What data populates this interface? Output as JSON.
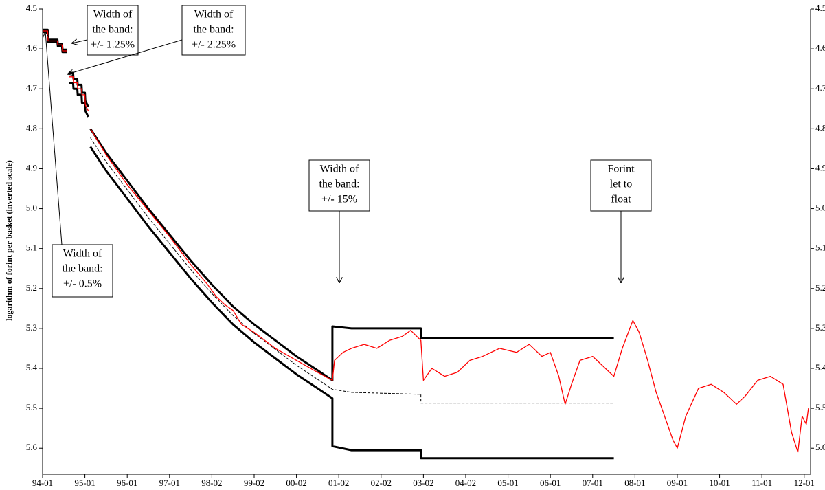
{
  "chart_data": {
    "type": "line",
    "y_label": "logarithm of forint per basket (inverted scale)",
    "y_inverted": true,
    "xlim": [
      0,
      18.15
    ],
    "xticks": [
      {
        "value": 0,
        "label": "94-01"
      },
      {
        "value": 1,
        "label": "95-01"
      },
      {
        "value": 2,
        "label": "96-01"
      },
      {
        "value": 3,
        "label": "97-01"
      },
      {
        "value": 4,
        "label": "98-02"
      },
      {
        "value": 5,
        "label": "99-02"
      },
      {
        "value": 6,
        "label": "00-02"
      },
      {
        "value": 7,
        "label": "01-02"
      },
      {
        "value": 8,
        "label": "02-02"
      },
      {
        "value": 9,
        "label": "03-02"
      },
      {
        "value": 10,
        "label": "04-02"
      },
      {
        "value": 11,
        "label": "05-01"
      },
      {
        "value": 12,
        "label": "06-01"
      },
      {
        "value": 13,
        "label": "07-01"
      },
      {
        "value": 14,
        "label": "08-01"
      },
      {
        "value": 15,
        "label": "09-01"
      },
      {
        "value": 16,
        "label": "10-01"
      },
      {
        "value": 17,
        "label": "11-01"
      },
      {
        "value": 18,
        "label": "12-01"
      }
    ],
    "ylim": [
      4.5,
      5.665
    ],
    "yticks": [
      {
        "value": 4.5,
        "label": "4.5"
      },
      {
        "value": 4.6,
        "label": "4.6"
      },
      {
        "value": 4.7,
        "label": "4.7"
      },
      {
        "value": 4.8,
        "label": "4.8"
      },
      {
        "value": 4.9,
        "label": "4.9"
      },
      {
        "value": 5.0,
        "label": "5.0"
      },
      {
        "value": 5.1,
        "label": "5.1"
      },
      {
        "value": 5.2,
        "label": "5.2"
      },
      {
        "value": 5.3,
        "label": "5.3"
      },
      {
        "value": 5.4,
        "label": "5.4"
      },
      {
        "value": 5.5,
        "label": "5.5"
      },
      {
        "value": 5.6,
        "label": "5.6"
      }
    ],
    "y2lim": [
      4.5,
      5.665
    ],
    "y2ticks": [
      {
        "value": 4.5,
        "label": "4.5"
      },
      {
        "value": 4.6,
        "label": "4.6"
      },
      {
        "value": 4.7,
        "label": "4.7"
      },
      {
        "value": 4.8,
        "label": "4.8"
      },
      {
        "value": 4.9,
        "label": "4.9"
      },
      {
        "value": 5.0,
        "label": "5.0"
      },
      {
        "value": 5.1,
        "label": "5.1"
      },
      {
        "value": 5.2,
        "label": "5.2"
      },
      {
        "value": 5.3,
        "label": "5.3"
      },
      {
        "value": 5.4,
        "label": "5.4"
      },
      {
        "value": 5.5,
        "label": "5.5"
      },
      {
        "value": 5.6,
        "label": "5.6"
      }
    ],
    "series": [
      {
        "color": "#000000",
        "bold": true,
        "x": [
          0,
          0.12,
          0.13,
          0.35,
          0.36,
          0.46,
          0.47,
          0.58,
          0.6,
          0.62,
          0.72,
          0.73,
          0.82,
          0.83,
          0.92,
          0.93,
          1.0,
          1.01,
          1.08,
          1.1,
          1.13,
          1.5,
          2,
          2.5,
          3,
          3.5,
          4,
          4.5,
          5,
          5.5,
          6,
          6.5,
          6.85,
          6.85,
          7.3,
          8.94,
          8.94,
          13.5
        ],
        "values": [
          4.552,
          4.552,
          4.577,
          4.577,
          4.587,
          4.587,
          4.602,
          4.602,
          null,
          4.66,
          4.66,
          4.675,
          4.675,
          4.69,
          4.69,
          4.71,
          4.71,
          4.73,
          4.745,
          null,
          4.8,
          4.86,
          4.93,
          5.0,
          5.065,
          5.13,
          5.19,
          5.245,
          5.29,
          5.33,
          5.37,
          5.405,
          5.43,
          5.295,
          5.3,
          5.3,
          5.325,
          5.325
        ]
      },
      {
        "color": "#000000",
        "bold": true,
        "x": [
          0,
          0.12,
          0.13,
          0.35,
          0.36,
          0.46,
          0.47,
          0.58,
          0.6,
          0.62,
          0.72,
          0.73,
          0.82,
          0.83,
          0.92,
          0.93,
          1.0,
          1.01,
          1.08,
          1.1,
          1.13,
          1.5,
          2,
          2.5,
          3,
          3.5,
          4,
          4.5,
          5,
          5.5,
          6,
          6.5,
          6.85,
          6.85,
          7.3,
          8.94,
          8.94,
          13.5
        ],
        "values": [
          4.558,
          4.558,
          4.583,
          4.583,
          4.593,
          4.593,
          4.608,
          4.608,
          null,
          4.685,
          4.685,
          4.7,
          4.7,
          4.715,
          4.715,
          4.735,
          4.735,
          4.755,
          4.77,
          null,
          4.845,
          4.905,
          4.975,
          5.045,
          5.11,
          5.175,
          5.235,
          5.29,
          5.335,
          5.375,
          5.415,
          5.45,
          5.475,
          5.595,
          5.605,
          5.605,
          5.625,
          5.625
        ]
      },
      {
        "color": "#000000",
        "dashed": true,
        "x": [
          1.13,
          1.5,
          2,
          2.5,
          3,
          3.5,
          4,
          4.5,
          5,
          5.5,
          6,
          6.5,
          6.85,
          7.3,
          8.94,
          8.94,
          13.5
        ],
        "values": [
          4.8225,
          4.8825,
          4.9525,
          5.0225,
          5.0875,
          5.1525,
          5.2125,
          5.2675,
          5.3125,
          5.3525,
          5.3925,
          5.4275,
          5.4525,
          5.46,
          5.465,
          5.487,
          5.487
        ]
      },
      {
        "color": "#ff0000",
        "x": [
          0,
          0.12,
          0.13,
          0.35,
          0.36,
          0.46,
          0.47,
          0.58,
          0.6,
          0.62,
          0.72,
          0.73,
          0.82,
          0.83,
          0.92,
          0.93,
          1.0,
          1.01,
          1.08,
          1.1,
          1.13,
          1.3,
          1.5,
          1.8,
          2,
          2.5,
          3,
          3.5,
          3.9,
          4.1,
          4.3,
          4.5,
          4.7,
          5,
          5.5,
          6,
          6.5,
          6.85,
          6.9,
          7.1,
          7.3,
          7.6,
          7.9,
          8.2,
          8.5,
          8.7,
          8.94,
          9.0,
          9.2,
          9.5,
          9.8,
          10.1,
          10.4,
          10.8,
          11.2,
          11.5,
          11.8,
          12.0,
          12.2,
          12.35,
          12.5,
          12.7,
          13.0,
          13.3,
          13.5,
          13.7,
          13.95,
          14.1,
          14.3,
          14.5,
          14.7,
          14.9,
          15.0,
          15.2,
          15.5,
          15.8,
          16.1,
          16.4,
          16.6,
          16.9,
          17.2,
          17.5,
          17.7,
          17.85,
          17.95,
          18.05,
          18.1
        ],
        "values": [
          4.555,
          4.555,
          4.58,
          4.58,
          4.59,
          4.59,
          4.605,
          4.605,
          null,
          4.67,
          4.67,
          4.685,
          4.685,
          4.7,
          4.7,
          4.715,
          4.715,
          4.74,
          4.755,
          null,
          4.8,
          4.83,
          4.865,
          4.91,
          4.94,
          5.005,
          5.07,
          5.14,
          5.19,
          5.22,
          5.24,
          5.255,
          5.29,
          5.31,
          5.35,
          5.38,
          5.41,
          5.43,
          5.38,
          5.36,
          5.35,
          5.34,
          5.35,
          5.33,
          5.32,
          5.305,
          5.33,
          5.43,
          5.4,
          5.42,
          5.41,
          5.38,
          5.37,
          5.35,
          5.36,
          5.34,
          5.37,
          5.36,
          5.42,
          5.49,
          5.44,
          5.38,
          5.37,
          5.4,
          5.42,
          5.35,
          5.28,
          5.31,
          5.38,
          5.46,
          5.52,
          5.58,
          5.6,
          5.52,
          5.45,
          5.44,
          5.46,
          5.49,
          5.47,
          5.43,
          5.42,
          5.44,
          5.56,
          5.61,
          5.52,
          5.54,
          5.5
        ]
      }
    ],
    "annotations": [
      {
        "lines": [
          "Width of",
          "the band:",
          "+/- 1.25%"
        ]
      },
      {
        "lines": [
          "Width of",
          "the band:",
          "+/- 2.25%"
        ]
      },
      {
        "lines": [
          "Width of",
          "the band:",
          "+/- 0.5%"
        ]
      },
      {
        "lines": [
          "Width of",
          "the band:",
          "+/- 15%"
        ]
      },
      {
        "lines": [
          "Forint",
          "let to",
          "float"
        ]
      }
    ]
  }
}
